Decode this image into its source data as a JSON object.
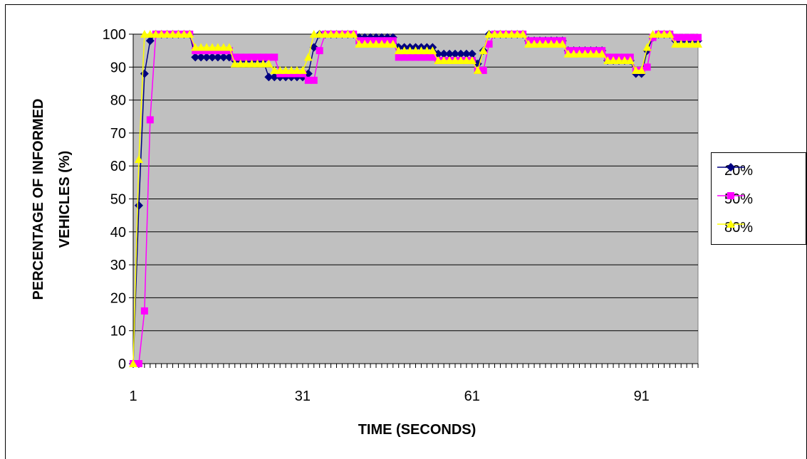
{
  "chart_data": {
    "type": "line",
    "xlabel": "TIME (SECONDS)",
    "ylabel_line1": "PERCENTAGE OF INFORMED",
    "ylabel_line2": "VEHICLES (%)",
    "ylim": [
      0,
      100
    ],
    "y_ticks": [
      0,
      10,
      20,
      30,
      40,
      50,
      60,
      70,
      80,
      90,
      100
    ],
    "x_tick_labels": [
      1,
      31,
      61,
      91
    ],
    "xlim": [
      1,
      101
    ],
    "grid": "horizontal",
    "plot_background": "#c0c0c0",
    "legend_position": "right",
    "series": [
      {
        "name": "20%",
        "color": "#000080",
        "marker": "diamond",
        "segments": [
          [
            1,
            1,
            0
          ],
          [
            2,
            2,
            48
          ],
          [
            3,
            3,
            88
          ],
          [
            4,
            4,
            98
          ],
          [
            5,
            11,
            100
          ],
          [
            12,
            18,
            93
          ],
          [
            19,
            24,
            92
          ],
          [
            25,
            31,
            87
          ],
          [
            32,
            32,
            88
          ],
          [
            33,
            33,
            96
          ],
          [
            34,
            40,
            100
          ],
          [
            41,
            47,
            99
          ],
          [
            48,
            54,
            96
          ],
          [
            55,
            61,
            94
          ],
          [
            62,
            62,
            91
          ],
          [
            63,
            63,
            95
          ],
          [
            64,
            70,
            100
          ],
          [
            71,
            77,
            98
          ],
          [
            78,
            84,
            95
          ],
          [
            85,
            89,
            92
          ],
          [
            90,
            91,
            88
          ],
          [
            92,
            92,
            95
          ],
          [
            93,
            93,
            99
          ],
          [
            94,
            96,
            100
          ],
          [
            97,
            101,
            98
          ]
        ]
      },
      {
        "name": "50%",
        "color": "#ff00ff",
        "marker": "square",
        "segments": [
          [
            1,
            1,
            0
          ],
          [
            2,
            2,
            0
          ],
          [
            3,
            3,
            16
          ],
          [
            4,
            4,
            74
          ],
          [
            5,
            11,
            100
          ],
          [
            12,
            18,
            95
          ],
          [
            19,
            26,
            93
          ],
          [
            27,
            31,
            88
          ],
          [
            32,
            33,
            86
          ],
          [
            34,
            34,
            95
          ],
          [
            35,
            40,
            100
          ],
          [
            41,
            47,
            98
          ],
          [
            48,
            54,
            93
          ],
          [
            55,
            61,
            92
          ],
          [
            62,
            63,
            89
          ],
          [
            64,
            64,
            97
          ],
          [
            65,
            70,
            100
          ],
          [
            71,
            77,
            98
          ],
          [
            78,
            84,
            95
          ],
          [
            85,
            89,
            93
          ],
          [
            90,
            91,
            89
          ],
          [
            92,
            92,
            90
          ],
          [
            93,
            93,
            99
          ],
          [
            94,
            96,
            100
          ],
          [
            97,
            101,
            99
          ]
        ]
      },
      {
        "name": "80%",
        "color": "#ffff00",
        "marker": "triangle",
        "segments": [
          [
            1,
            1,
            0
          ],
          [
            2,
            2,
            62
          ],
          [
            3,
            11,
            100
          ],
          [
            12,
            18,
            96
          ],
          [
            19,
            25,
            91
          ],
          [
            26,
            31,
            89
          ],
          [
            32,
            32,
            93
          ],
          [
            33,
            40,
            100
          ],
          [
            41,
            47,
            97
          ],
          [
            48,
            54,
            95
          ],
          [
            55,
            61,
            92
          ],
          [
            62,
            62,
            89
          ],
          [
            63,
            63,
            95
          ],
          [
            64,
            70,
            100
          ],
          [
            71,
            77,
            97
          ],
          [
            78,
            84,
            94
          ],
          [
            85,
            89,
            92
          ],
          [
            90,
            91,
            89
          ],
          [
            92,
            92,
            96
          ],
          [
            93,
            96,
            100
          ],
          [
            97,
            101,
            97
          ]
        ]
      }
    ]
  }
}
